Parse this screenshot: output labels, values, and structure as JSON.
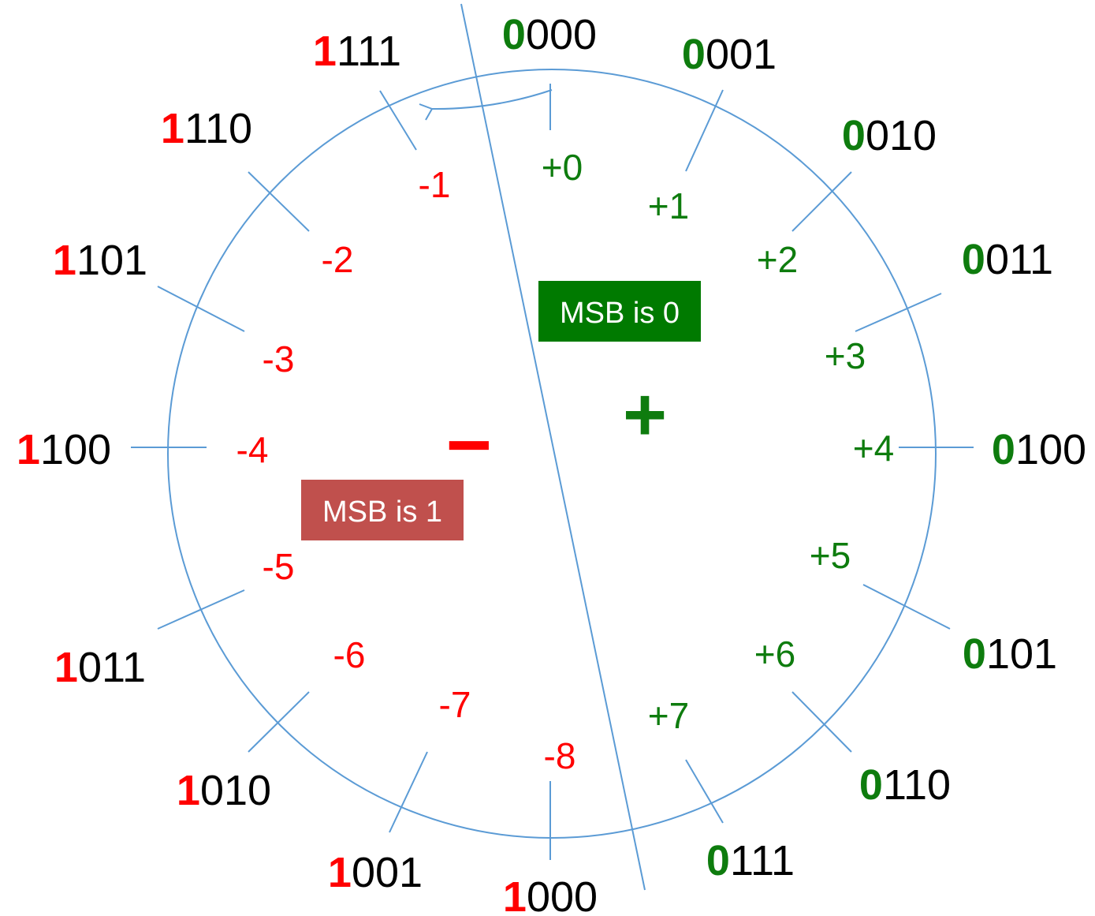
{
  "colors": {
    "line": "#5b9bd5",
    "negative": "#ff0000",
    "positive": "#0e7c0e",
    "neg_box": "#c0504d",
    "pos_box": "#007a00"
  },
  "entries": [
    {
      "msb": "0",
      "rest": "000",
      "value": "+0"
    },
    {
      "msb": "0",
      "rest": "001",
      "value": "+1"
    },
    {
      "msb": "0",
      "rest": "010",
      "value": "+2"
    },
    {
      "msb": "0",
      "rest": "011",
      "value": "+3"
    },
    {
      "msb": "0",
      "rest": "100",
      "value": "+4"
    },
    {
      "msb": "0",
      "rest": "101",
      "value": "+5"
    },
    {
      "msb": "0",
      "rest": "110",
      "value": "+6"
    },
    {
      "msb": "0",
      "rest": "111",
      "value": "+7"
    },
    {
      "msb": "1",
      "rest": "000",
      "value": "-8"
    },
    {
      "msb": "1",
      "rest": "001",
      "value": "-7"
    },
    {
      "msb": "1",
      "rest": "010",
      "value": "-6"
    },
    {
      "msb": "1",
      "rest": "011",
      "value": "-5"
    },
    {
      "msb": "1",
      "rest": "100",
      "value": "-4"
    },
    {
      "msb": "1",
      "rest": "101",
      "value": "-3"
    },
    {
      "msb": "1",
      "rest": "110",
      "value": "-2"
    },
    {
      "msb": "1",
      "rest": "111",
      "value": "-1"
    }
  ],
  "labels": {
    "msb0": "MSB is 0",
    "msb1": "MSB is 1",
    "plus_sign": "+",
    "minus_sign": "−"
  }
}
